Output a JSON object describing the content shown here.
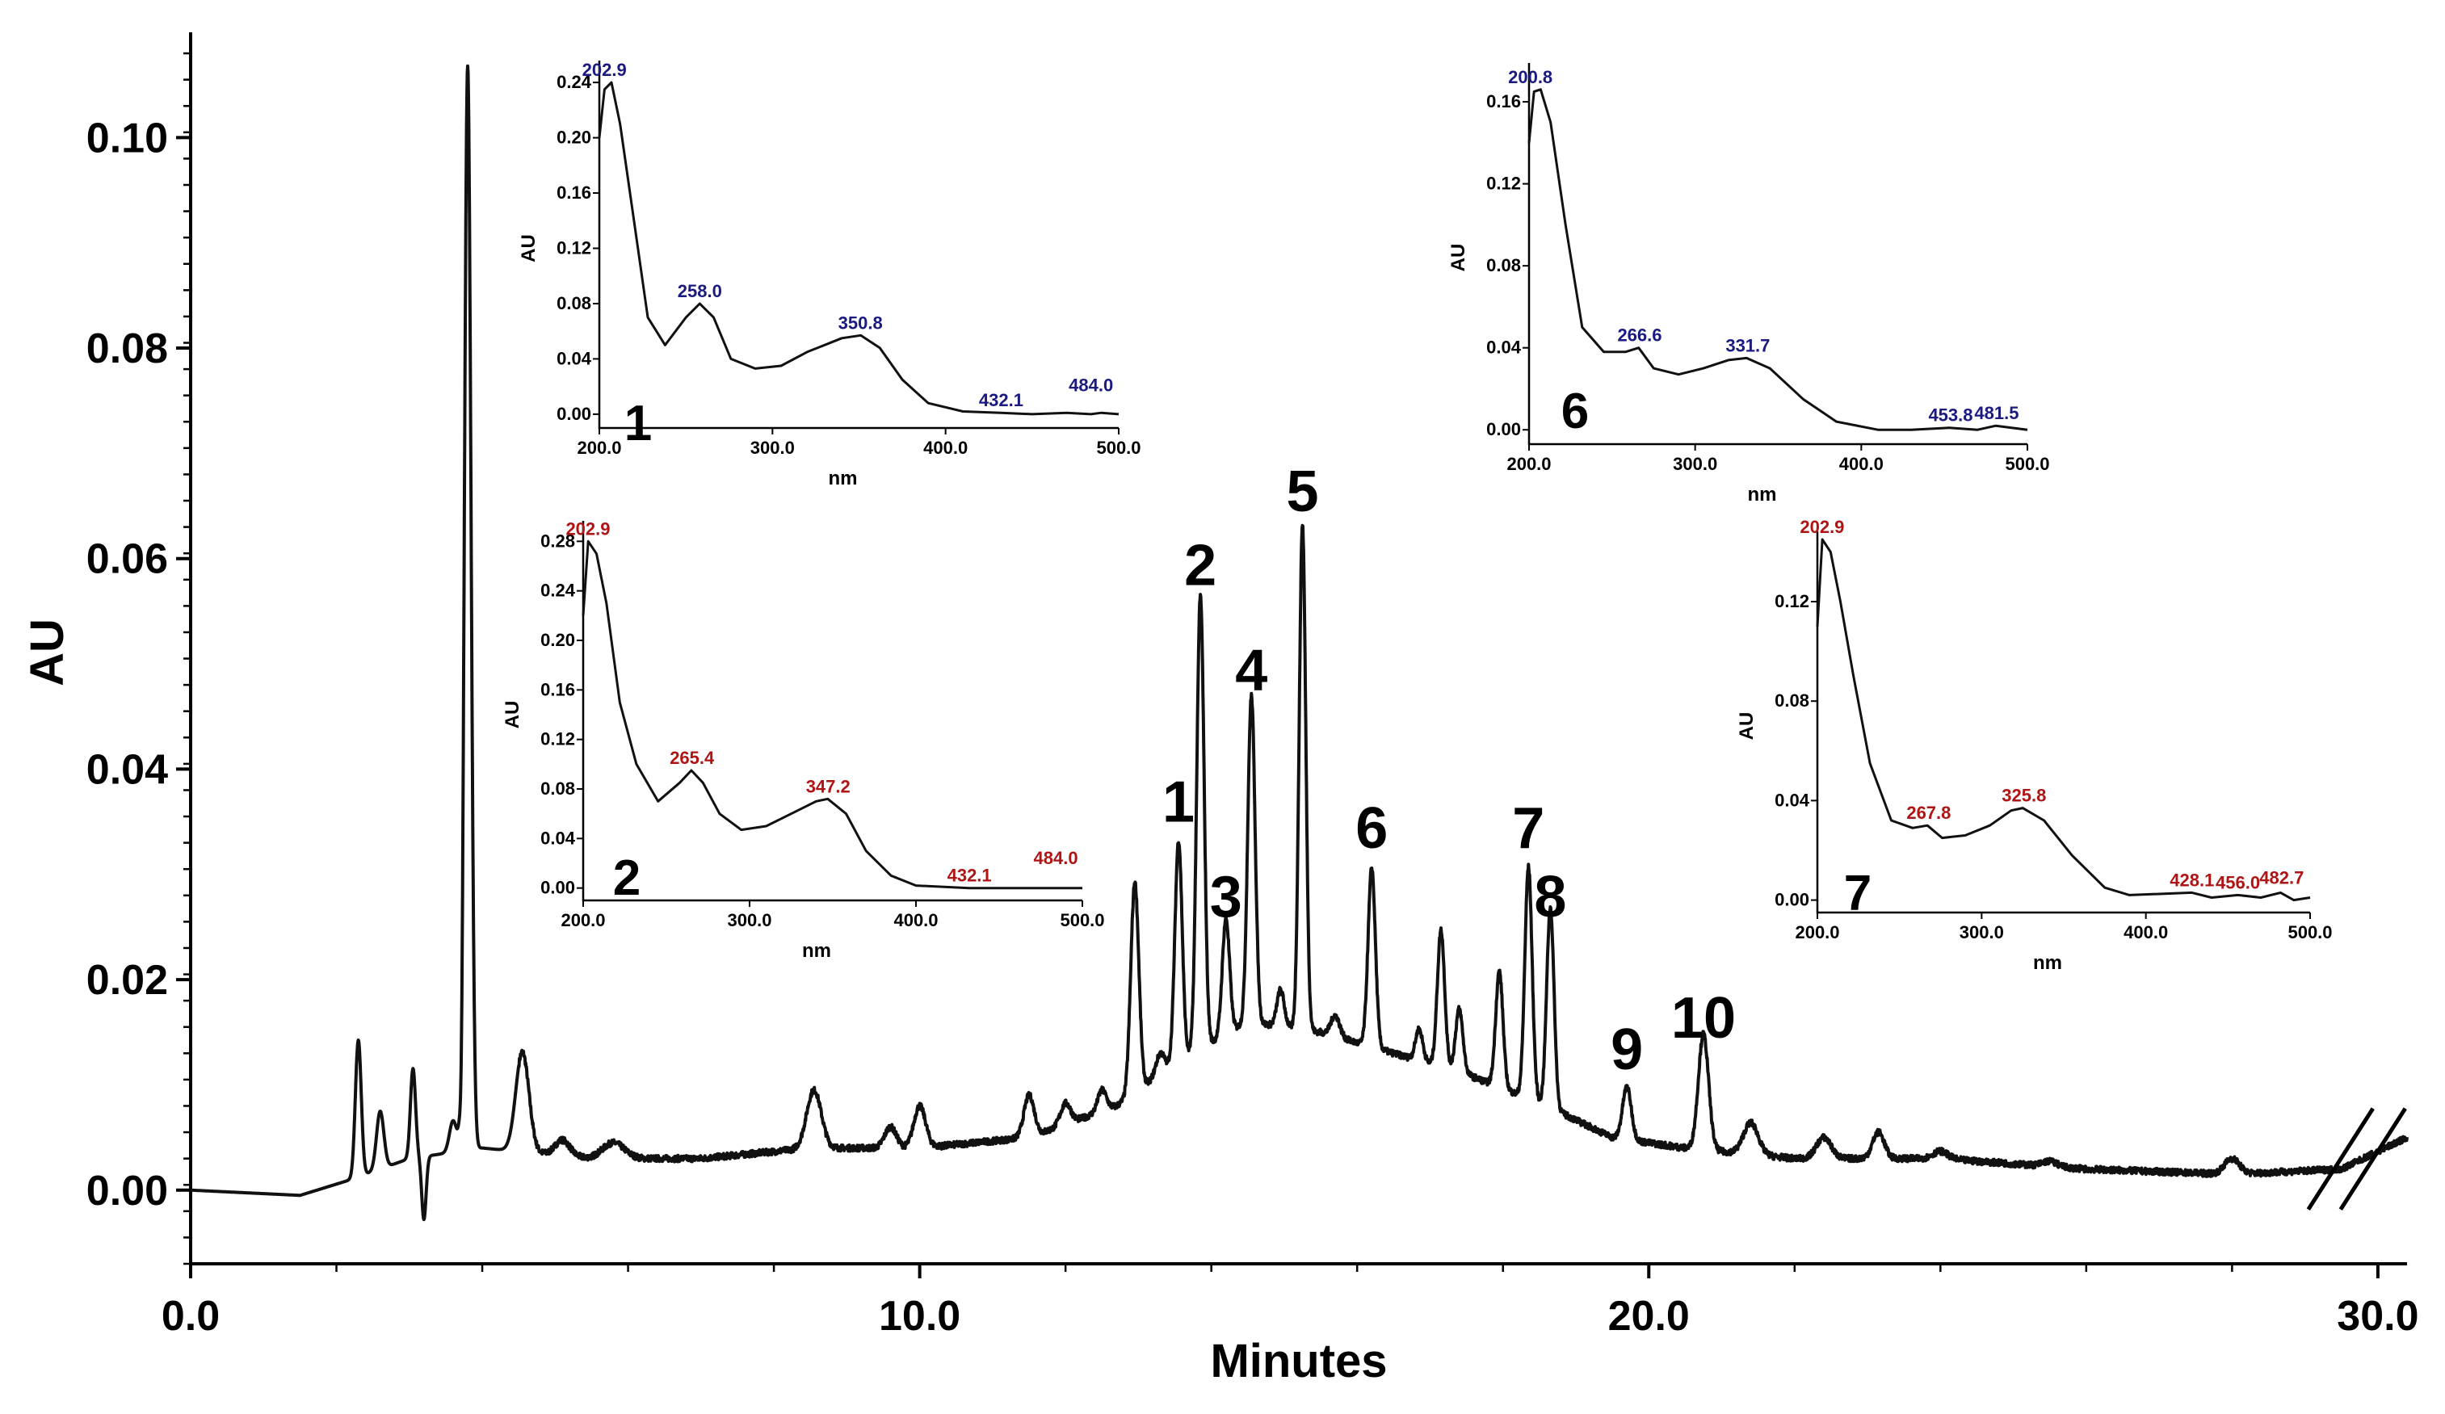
{
  "colors": {
    "axis": "#000000",
    "trace": "#111111",
    "blue_spectrum": "#1a1a80",
    "red_spectrum": "#b01515"
  },
  "chart_data": [
    {
      "type": "line",
      "id": "main",
      "title": "",
      "xlabel": "Minutes",
      "ylabel": "AU",
      "xlim": [
        0,
        30.4
      ],
      "ylim": [
        -0.007,
        0.11
      ],
      "xticks": [
        0,
        10,
        20,
        30
      ],
      "xtick_labels": [
        "0.0",
        "10.0",
        "20.0",
        "30.0"
      ],
      "yticks": [
        0.0,
        0.02,
        0.04,
        0.06,
        0.08,
        0.1
      ],
      "ytick_labels": [
        "0.00",
        "0.02",
        "0.04",
        "0.06",
        "0.08",
        "0.10"
      ],
      "baseline_points": [
        [
          0,
          0
        ],
        [
          1.5,
          -0.0005
        ],
        [
          2.2,
          0.001
        ],
        [
          3.0,
          0.003
        ],
        [
          4.0,
          0.004
        ],
        [
          5.5,
          0.003
        ],
        [
          7.0,
          0.003
        ],
        [
          8.5,
          0.004
        ],
        [
          10.0,
          0.004
        ],
        [
          11.5,
          0.005
        ],
        [
          12.7,
          0.008
        ],
        [
          13.5,
          0.012
        ],
        [
          14.5,
          0.016
        ],
        [
          15.5,
          0.015
        ],
        [
          16.5,
          0.013
        ],
        [
          17.5,
          0.011
        ],
        [
          18.6,
          0.008
        ],
        [
          19.5,
          0.005
        ],
        [
          20.5,
          0.004
        ],
        [
          22.0,
          0.003
        ],
        [
          24.0,
          0.003
        ],
        [
          26.0,
          0.002
        ],
        [
          28.0,
          0.0015
        ],
        [
          29.5,
          0.002
        ],
        [
          30.4,
          0.005
        ]
      ],
      "peaks": [
        {
          "t": 2.3,
          "h": 0.013,
          "w": 0.04
        },
        {
          "t": 2.6,
          "h": 0.0055,
          "w": 0.05
        },
        {
          "t": 3.05,
          "h": 0.0085,
          "w": 0.035
        },
        {
          "t": 3.2,
          "h": -0.006,
          "w": 0.03
        },
        {
          "t": 3.6,
          "h": 0.003,
          "w": 0.05
        },
        {
          "t": 3.72,
          "h": -0.007,
          "w": 0.02
        },
        {
          "t": 3.8,
          "h": 0.103,
          "w": 0.045
        },
        {
          "t": 4.55,
          "h": 0.0095,
          "w": 0.09
        },
        {
          "t": 5.1,
          "h": 0.0015,
          "w": 0.1
        },
        {
          "t": 5.8,
          "h": 0.0015,
          "w": 0.15
        },
        {
          "t": 8.55,
          "h": 0.0055,
          "w": 0.1
        },
        {
          "t": 9.6,
          "h": 0.002,
          "w": 0.08
        },
        {
          "t": 10.0,
          "h": 0.004,
          "w": 0.08
        },
        {
          "t": 11.5,
          "h": 0.004,
          "w": 0.07
        },
        {
          "t": 12.0,
          "h": 0.002,
          "w": 0.07
        },
        {
          "t": 12.5,
          "h": 0.002,
          "w": 0.06
        },
        {
          "t": 12.95,
          "h": 0.02,
          "w": 0.055
        },
        {
          "t": 13.3,
          "h": 0.002,
          "w": 0.06
        },
        {
          "t": 13.55,
          "h": 0.021,
          "w": 0.05
        },
        {
          "t": 13.85,
          "h": 0.043,
          "w": 0.05
        },
        {
          "t": 14.2,
          "h": 0.011,
          "w": 0.05
        },
        {
          "t": 14.55,
          "h": 0.031,
          "w": 0.05
        },
        {
          "t": 14.95,
          "h": 0.0035,
          "w": 0.05
        },
        {
          "t": 15.25,
          "h": 0.048,
          "w": 0.045
        },
        {
          "t": 15.7,
          "h": 0.002,
          "w": 0.06
        },
        {
          "t": 16.2,
          "h": 0.017,
          "w": 0.05
        },
        {
          "t": 16.85,
          "h": 0.003,
          "w": 0.05
        },
        {
          "t": 17.15,
          "h": 0.013,
          "w": 0.05
        },
        {
          "t": 17.4,
          "h": 0.006,
          "w": 0.05
        },
        {
          "t": 17.95,
          "h": 0.011,
          "w": 0.05
        },
        {
          "t": 18.35,
          "h": 0.022,
          "w": 0.05
        },
        {
          "t": 18.65,
          "h": 0.019,
          "w": 0.05
        },
        {
          "t": 19.7,
          "h": 0.005,
          "w": 0.06
        },
        {
          "t": 20.75,
          "h": 0.011,
          "w": 0.07
        },
        {
          "t": 21.4,
          "h": 0.003,
          "w": 0.1
        },
        {
          "t": 22.4,
          "h": 0.002,
          "w": 0.1
        },
        {
          "t": 23.15,
          "h": 0.0025,
          "w": 0.08
        },
        {
          "t": 24.0,
          "h": 0.0007,
          "w": 0.1
        },
        {
          "t": 25.5,
          "h": 0.0005,
          "w": 0.1
        },
        {
          "t": 28.0,
          "h": 0.0015,
          "w": 0.1
        }
      ],
      "peak_labels": [
        {
          "label": "1",
          "t": 13.55,
          "y": 0.035
        },
        {
          "label": "2",
          "t": 13.85,
          "y": 0.0575
        },
        {
          "label": "3",
          "t": 14.2,
          "y": 0.026
        },
        {
          "label": "4",
          "t": 14.55,
          "y": 0.0475
        },
        {
          "label": "5",
          "t": 15.25,
          "y": 0.0645
        },
        {
          "label": "6",
          "t": 16.2,
          "y": 0.0325
        },
        {
          "label": "7",
          "t": 18.35,
          "y": 0.0325
        },
        {
          "label": "8",
          "t": 18.65,
          "y": 0.026
        },
        {
          "label": "9",
          "t": 19.7,
          "y": 0.0115
        },
        {
          "label": "10",
          "t": 20.75,
          "y": 0.0145
        }
      ],
      "axis_break_at": 29.6
    },
    {
      "type": "line",
      "id": "inset-1",
      "number": "1",
      "color": "blue",
      "xlabel": "nm",
      "ylabel": "AU",
      "xlim": [
        200,
        500
      ],
      "ylim": [
        -0.01,
        0.25
      ],
      "xticks": [
        200,
        300,
        400,
        500
      ],
      "xtick_labels": [
        "200.0",
        "300.0",
        "400.0",
        "500.0"
      ],
      "yticks": [
        0.0,
        0.04,
        0.08,
        0.12,
        0.16,
        0.2,
        0.24
      ],
      "ytick_labels": [
        "0.00",
        "0.04",
        "0.08",
        "0.12",
        "0.16",
        "0.20",
        "0.24"
      ],
      "points": [
        [
          200,
          0.2
        ],
        [
          203,
          0.235
        ],
        [
          207,
          0.24
        ],
        [
          212,
          0.21
        ],
        [
          220,
          0.14
        ],
        [
          228,
          0.07
        ],
        [
          238,
          0.05
        ],
        [
          250,
          0.07
        ],
        [
          258,
          0.08
        ],
        [
          266,
          0.07
        ],
        [
          276,
          0.04
        ],
        [
          290,
          0.033
        ],
        [
          305,
          0.035
        ],
        [
          320,
          0.045
        ],
        [
          340,
          0.055
        ],
        [
          351,
          0.057
        ],
        [
          362,
          0.048
        ],
        [
          375,
          0.025
        ],
        [
          390,
          0.008
        ],
        [
          410,
          0.002
        ],
        [
          432,
          0.001
        ],
        [
          450,
          0.0
        ],
        [
          470,
          0.001
        ],
        [
          484,
          0.0
        ],
        [
          490,
          0.001
        ],
        [
          500,
          0.0
        ]
      ],
      "peak_labels": [
        {
          "text": "202.9",
          "x": 202.9,
          "y": 0.24
        },
        {
          "text": "258.0",
          "x": 258.0,
          "y": 0.08
        },
        {
          "text": "350.8",
          "x": 350.8,
          "y": 0.057
        },
        {
          "text": "432.1",
          "x": 432.1,
          "y": 0.001
        },
        {
          "text": "484.0",
          "x": 484.0,
          "y": 0.012
        }
      ]
    },
    {
      "type": "line",
      "id": "inset-2",
      "number": "2",
      "color": "red",
      "xlabel": "nm",
      "ylabel": "AU",
      "xlim": [
        200,
        500
      ],
      "ylim": [
        -0.01,
        0.29
      ],
      "xticks": [
        200,
        300,
        400,
        500
      ],
      "xtick_labels": [
        "200.0",
        "300.0",
        "400.0",
        "500.0"
      ],
      "yticks": [
        0.0,
        0.04,
        0.08,
        0.12,
        0.16,
        0.2,
        0.24,
        0.28
      ],
      "ytick_labels": [
        "0.00",
        "0.04",
        "0.08",
        "0.12",
        "0.16",
        "0.20",
        "0.24",
        "0.28"
      ],
      "points": [
        [
          200,
          0.22
        ],
        [
          203,
          0.28
        ],
        [
          208,
          0.27
        ],
        [
          214,
          0.23
        ],
        [
          222,
          0.15
        ],
        [
          232,
          0.1
        ],
        [
          245,
          0.07
        ],
        [
          258,
          0.085
        ],
        [
          265,
          0.095
        ],
        [
          272,
          0.085
        ],
        [
          282,
          0.06
        ],
        [
          295,
          0.047
        ],
        [
          310,
          0.05
        ],
        [
          325,
          0.06
        ],
        [
          340,
          0.07
        ],
        [
          347,
          0.072
        ],
        [
          358,
          0.06
        ],
        [
          370,
          0.03
        ],
        [
          385,
          0.01
        ],
        [
          400,
          0.002
        ],
        [
          432,
          0.0
        ],
        [
          460,
          0.0
        ],
        [
          484,
          0.0
        ],
        [
          500,
          0.0
        ]
      ],
      "peak_labels": [
        {
          "text": "202.9",
          "x": 202.9,
          "y": 0.28
        },
        {
          "text": "265.4",
          "x": 265.4,
          "y": 0.095
        },
        {
          "text": "347.2",
          "x": 347.2,
          "y": 0.072
        },
        {
          "text": "432.1",
          "x": 432.1,
          "y": 0.0
        },
        {
          "text": "484.0",
          "x": 484.0,
          "y": 0.014
        }
      ]
    },
    {
      "type": "line",
      "id": "inset-6",
      "number": "6",
      "color": "blue",
      "xlabel": "nm",
      "ylabel": "AU",
      "xlim": [
        200,
        500
      ],
      "ylim": [
        -0.007,
        0.175
      ],
      "xticks": [
        200,
        300,
        400,
        500
      ],
      "xtick_labels": [
        "200.0",
        "300.0",
        "400.0",
        "500.0"
      ],
      "yticks": [
        0.0,
        0.04,
        0.08,
        0.12,
        0.16
      ],
      "ytick_labels": [
        "0.00",
        "0.04",
        "0.08",
        "0.12",
        "0.16"
      ],
      "points": [
        [
          200,
          0.14
        ],
        [
          203,
          0.165
        ],
        [
          207,
          0.166
        ],
        [
          213,
          0.15
        ],
        [
          222,
          0.1
        ],
        [
          232,
          0.05
        ],
        [
          245,
          0.038
        ],
        [
          258,
          0.038
        ],
        [
          266,
          0.04
        ],
        [
          275,
          0.03
        ],
        [
          290,
          0.027
        ],
        [
          305,
          0.03
        ],
        [
          320,
          0.034
        ],
        [
          331,
          0.035
        ],
        [
          345,
          0.03
        ],
        [
          365,
          0.015
        ],
        [
          385,
          0.004
        ],
        [
          410,
          0.0
        ],
        [
          430,
          0.0
        ],
        [
          453,
          0.001
        ],
        [
          470,
          0.0
        ],
        [
          481,
          0.002
        ],
        [
          500,
          0.0
        ]
      ],
      "peak_labels": [
        {
          "text": "200.8",
          "x": 200.8,
          "y": 0.166
        },
        {
          "text": "266.6",
          "x": 266.6,
          "y": 0.04
        },
        {
          "text": "331.7",
          "x": 331.7,
          "y": 0.035
        },
        {
          "text": "453.8",
          "x": 453.8,
          "y": 0.001
        },
        {
          "text": "481.5",
          "x": 481.5,
          "y": 0.002
        }
      ]
    },
    {
      "type": "line",
      "id": "inset-7",
      "number": "7",
      "color": "red",
      "xlabel": "nm",
      "ylabel": "AU",
      "xlim": [
        200,
        500
      ],
      "ylim": [
        -0.005,
        0.145
      ],
      "xticks": [
        200,
        300,
        400,
        500
      ],
      "xtick_labels": [
        "200.0",
        "300.0",
        "400.0",
        "500.0"
      ],
      "yticks": [
        0.0,
        0.04,
        0.08,
        0.12
      ],
      "ytick_labels": [
        "0.00",
        "0.04",
        "0.08",
        "0.12"
      ],
      "points": [
        [
          200,
          0.11
        ],
        [
          203,
          0.145
        ],
        [
          208,
          0.14
        ],
        [
          214,
          0.12
        ],
        [
          222,
          0.09
        ],
        [
          232,
          0.055
        ],
        [
          245,
          0.032
        ],
        [
          258,
          0.029
        ],
        [
          267,
          0.03
        ],
        [
          276,
          0.025
        ],
        [
          290,
          0.026
        ],
        [
          305,
          0.03
        ],
        [
          318,
          0.036
        ],
        [
          325,
          0.037
        ],
        [
          338,
          0.032
        ],
        [
          355,
          0.018
        ],
        [
          375,
          0.005
        ],
        [
          390,
          0.002
        ],
        [
          428,
          0.003
        ],
        [
          440,
          0.001
        ],
        [
          456,
          0.002
        ],
        [
          470,
          0.001
        ],
        [
          482,
          0.003
        ],
        [
          490,
          0.0
        ],
        [
          500,
          0.001
        ]
      ],
      "peak_labels": [
        {
          "text": "202.9",
          "x": 202.9,
          "y": 0.145
        },
        {
          "text": "267.8",
          "x": 267.8,
          "y": 0.03
        },
        {
          "text": "325.8",
          "x": 325.8,
          "y": 0.037
        },
        {
          "text": "428.1",
          "x": 428.1,
          "y": 0.003
        },
        {
          "text": "456.0",
          "x": 456.0,
          "y": 0.002
        },
        {
          "text": "482.7",
          "x": 482.7,
          "y": 0.004
        }
      ]
    }
  ]
}
